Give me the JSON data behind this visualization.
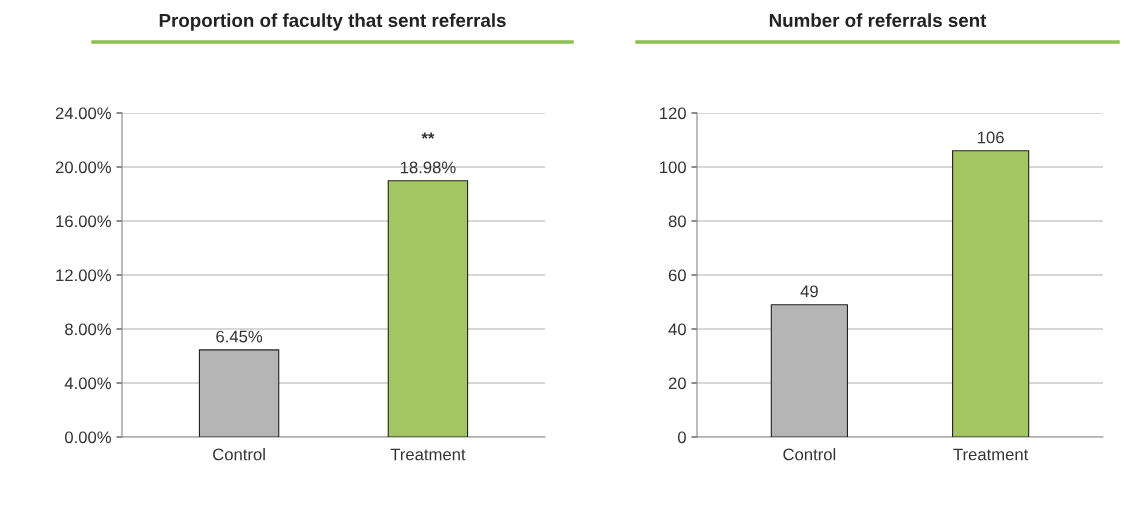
{
  "chart_data": [
    {
      "type": "bar",
      "title": "Proportion of faculty that sent referrals",
      "categories": [
        "Control",
        "Treatment"
      ],
      "values": [
        6.45,
        18.98
      ],
      "colors": [
        "#b5b5b5",
        "#a3c663"
      ],
      "value_labels": [
        "6.45%",
        "18.98%"
      ],
      "ylim": [
        0,
        24
      ],
      "yticks": [
        {
          "value": 0,
          "label": "0.00%"
        },
        {
          "value": 4,
          "label": "4.00%"
        },
        {
          "value": 8,
          "label": "8.00%"
        },
        {
          "value": 12,
          "label": "12.00%"
        },
        {
          "value": 16,
          "label": "16.00%"
        },
        {
          "value": 20,
          "label": "20.00%"
        },
        {
          "value": 24,
          "label": "24.00%"
        }
      ],
      "grid": "y",
      "annotations": [
        "**"
      ]
    },
    {
      "type": "bar",
      "title": "Number of referrals sent",
      "categories": [
        "Control",
        "Treatment"
      ],
      "values": [
        49,
        106
      ],
      "colors": [
        "#b5b5b5",
        "#a3c663"
      ],
      "data_labels": true,
      "ylim": [
        0,
        120
      ],
      "yticks": [
        0,
        20,
        40,
        60,
        80,
        100,
        120
      ],
      "grid": "y"
    }
  ]
}
